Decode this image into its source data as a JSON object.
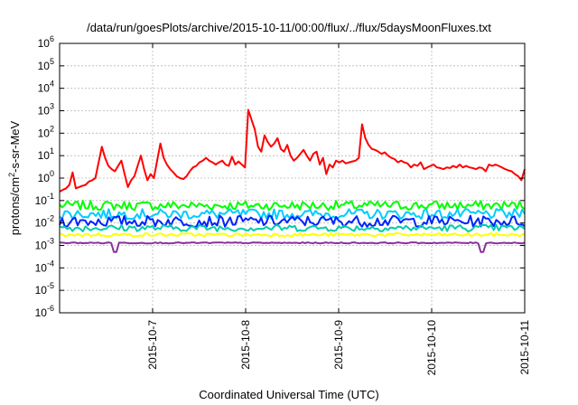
{
  "chart_data": {
    "type": "line",
    "title": "/data/run/goesPlots/archive/2015-10-11/00:00/flux/../flux/5daysMoonFluxes.txt",
    "xlabel": "Coordinated Universal Time (UTC)",
    "ylabel": {
      "base": "protons/cm",
      "sup": "2",
      "rest": "-s-sr-MeV"
    },
    "y_scale": "log",
    "ylim": [
      1e-06,
      1000000.0
    ],
    "y_ticks": [
      {
        "value": 1e-06,
        "base": "10",
        "exp": "-6"
      },
      {
        "value": 1e-05,
        "base": "10",
        "exp": "-5"
      },
      {
        "value": 0.0001,
        "base": "10",
        "exp": "-4"
      },
      {
        "value": 0.001,
        "base": "10",
        "exp": "-3"
      },
      {
        "value": 0.01,
        "base": "10",
        "exp": "-2"
      },
      {
        "value": 0.1,
        "base": "10",
        "exp": "-1"
      },
      {
        "value": 1.0,
        "base": "10",
        "exp": "0"
      },
      {
        "value": 10.0,
        "base": "10",
        "exp": "1"
      },
      {
        "value": 100.0,
        "base": "10",
        "exp": "2"
      },
      {
        "value": 1000.0,
        "base": "10",
        "exp": "3"
      },
      {
        "value": 10000.0,
        "base": "10",
        "exp": "4"
      },
      {
        "value": 100000.0,
        "base": "10",
        "exp": "5"
      },
      {
        "value": 1000000.0,
        "base": "10",
        "exp": "6"
      }
    ],
    "xlim": [
      "2015-10-06 00:00",
      "2015-10-11 00:00"
    ],
    "x_ticks": [
      "2015-10-7",
      "2015-10-8",
      "2015-10-9",
      "2015-10-10",
      "2015-10-11"
    ],
    "grid": true,
    "series": [
      {
        "color": "#ff0000",
        "values_every_2h": [
          0.25,
          0.3,
          0.35,
          0.5,
          1.8,
          0.35,
          0.4,
          0.45,
          0.5,
          0.7,
          0.8,
          1.0,
          5.0,
          25,
          8,
          3.5,
          2.5,
          2.0,
          3.5,
          6,
          1.5,
          0.4,
          0.8,
          1.2,
          3.5,
          10,
          2.5,
          0.8,
          1.5,
          1.0,
          6,
          35,
          8,
          4,
          2.5,
          1.8,
          1.2,
          1.0,
          0.9,
          1.2,
          2.0,
          3.0,
          3.5,
          5,
          6,
          8,
          6,
          5,
          4,
          5,
          6,
          4,
          3.5,
          9,
          4,
          5.5,
          4,
          3,
          1100,
          400,
          150,
          25,
          15,
          80,
          40,
          25,
          35,
          60,
          20,
          15,
          30,
          10,
          6,
          8,
          12,
          18,
          10,
          6,
          12,
          15,
          4,
          8,
          1.5,
          4,
          3,
          6,
          5,
          6,
          4.5,
          5,
          5.5,
          6,
          8,
          250,
          60,
          30,
          20,
          18,
          15,
          12,
          14,
          10,
          8,
          7,
          5,
          6,
          5,
          4.5,
          3,
          4,
          3.5,
          5,
          2.5,
          3,
          3.5,
          4,
          3,
          2.8,
          2.5,
          3,
          2.8,
          3.5,
          3,
          4,
          3,
          3.5,
          3,
          2.8,
          2.5,
          3,
          2.8,
          2,
          4,
          3.5,
          4,
          3.5,
          3,
          2.5,
          2.2,
          2,
          1.5,
          1.2,
          0.8,
          2.5
        ]
      },
      {
        "color": "#00ff00",
        "level": 0.06,
        "spread": 0.42
      },
      {
        "color": "#00ccff",
        "level": 0.025,
        "spread": 0.45
      },
      {
        "color": "#0022ff",
        "level": 0.012,
        "spread": 0.5
      },
      {
        "color": "#00ccaa",
        "level": 0.006,
        "spread": 0.3
      },
      {
        "color": "#ffff00",
        "level": 0.003,
        "spread": 0.15
      },
      {
        "color": "#883399",
        "level": 0.0013,
        "spread": 0.05
      }
    ]
  }
}
